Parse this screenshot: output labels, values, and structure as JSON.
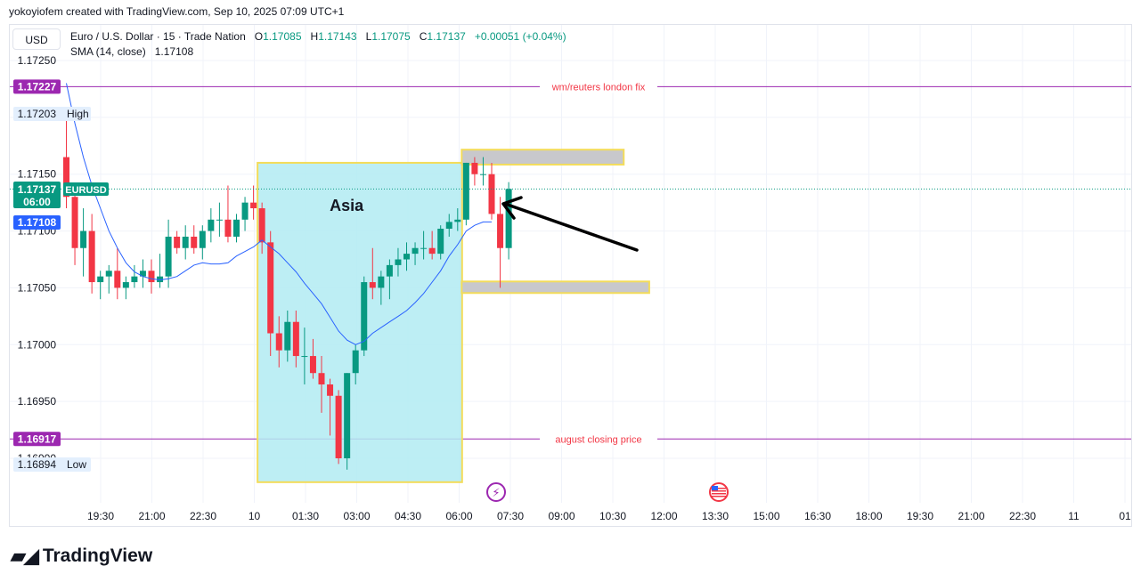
{
  "caption": "yokoyiofem created with TradingView.com, Sep 10, 2025 07:09 UTC+1",
  "currency_button": "USD",
  "legend": {
    "symbol": "Euro / U.S. Dollar · 15 · Trade Nation",
    "o_label": "O",
    "o_value": "1.17085",
    "h_label": "H",
    "h_value": "1.17143",
    "l_label": "L",
    "l_value": "1.17075",
    "c_label": "C",
    "c_value": "1.17137",
    "change": "+0.00051 (+0.04%)",
    "sma_label": "SMA (14, close)",
    "sma_value": "1.17108"
  },
  "colors": {
    "up": "#089981",
    "down": "#f23645",
    "sma": "#2962ff",
    "hline": "#9c27b0",
    "hline_text": "#f23645",
    "asia_fill": "#b2ebf2",
    "asia_border": "#f3dc5a",
    "zone_fill": "#c8c8cc",
    "arrow": "#000000"
  },
  "chart_data": {
    "type": "candlestick",
    "y_ticks": [
      "1.17250",
      "1.17150",
      "1.17100",
      "1.17050",
      "1.17000",
      "1.16950",
      "1.16900"
    ],
    "x_ticks": [
      "19:30",
      "21:00",
      "22:30",
      "10",
      "01:30",
      "03:00",
      "04:30",
      "06:00",
      "07:30",
      "09:00",
      "10:30",
      "12:00",
      "13:30",
      "15:00",
      "16:30",
      "18:00",
      "19:30",
      "21:00",
      "22:30",
      "11",
      "01"
    ],
    "ylim": [
      1.16875,
      1.17265
    ],
    "price_labels": {
      "fix_value": "1.17227",
      "high_value": "1.17203",
      "high_label": "High",
      "current_value": "1.17137",
      "current_symbol": "EURUSD",
      "countdown": "06:00",
      "sma_value": "1.17108",
      "close_value": "1.16917",
      "low_value": "1.16894",
      "low_label": "Low"
    },
    "horizontal_lines": [
      {
        "label": "wm/reuters london fix",
        "value": 1.17227
      },
      {
        "label": "august closing price",
        "value": 1.16917
      }
    ],
    "annotations": {
      "asia_label": "Asia"
    },
    "candles": [
      [
        1.17165,
        1.172,
        1.1712,
        1.1713
      ],
      [
        1.1713,
        1.1714,
        1.1707,
        1.17085
      ],
      [
        1.17085,
        1.1712,
        1.1706,
        1.171
      ],
      [
        1.171,
        1.17115,
        1.17045,
        1.17055
      ],
      [
        1.17055,
        1.17065,
        1.1704,
        1.1706
      ],
      [
        1.1706,
        1.1707,
        1.17045,
        1.17065
      ],
      [
        1.17065,
        1.17085,
        1.1704,
        1.1705
      ],
      [
        1.1705,
        1.1706,
        1.1704,
        1.17055
      ],
      [
        1.17055,
        1.1707,
        1.1705,
        1.1706
      ],
      [
        1.1706,
        1.17075,
        1.1705,
        1.17065
      ],
      [
        1.17065,
        1.17075,
        1.17045,
        1.17055
      ],
      [
        1.17055,
        1.1708,
        1.1705,
        1.1706
      ],
      [
        1.1706,
        1.1711,
        1.1705,
        1.17095
      ],
      [
        1.17095,
        1.171,
        1.1708,
        1.17085
      ],
      [
        1.17085,
        1.17105,
        1.17075,
        1.17095
      ],
      [
        1.17095,
        1.17105,
        1.1708,
        1.17085
      ],
      [
        1.17085,
        1.17105,
        1.17075,
        1.171
      ],
      [
        1.171,
        1.1712,
        1.1709,
        1.1711
      ],
      [
        1.1711,
        1.17125,
        1.17095,
        1.1711
      ],
      [
        1.1711,
        1.1714,
        1.1709,
        1.17095
      ],
      [
        1.17095,
        1.17115,
        1.1709,
        1.1711
      ],
      [
        1.1711,
        1.1713,
        1.171,
        1.17125
      ],
      [
        1.17125,
        1.1714,
        1.1711,
        1.1712
      ],
      [
        1.1712,
        1.17125,
        1.1708,
        1.1709
      ],
      [
        1.1709,
        1.171,
        1.1699,
        1.1701
      ],
      [
        1.1701,
        1.17025,
        1.1698,
        1.16995
      ],
      [
        1.16995,
        1.1703,
        1.16985,
        1.1702
      ],
      [
        1.1702,
        1.1703,
        1.1698,
        1.1699
      ],
      [
        1.1699,
        1.17015,
        1.16965,
        1.1699
      ],
      [
        1.1699,
        1.17005,
        1.1697,
        1.16975
      ],
      [
        1.16975,
        1.1699,
        1.1694,
        1.16965
      ],
      [
        1.16965,
        1.1697,
        1.1692,
        1.16955
      ],
      [
        1.16955,
        1.1696,
        1.16895,
        1.169
      ],
      [
        1.169,
        1.16975,
        1.1689,
        1.16975
      ],
      [
        1.16975,
        1.17,
        1.16965,
        1.16995
      ],
      [
        1.16995,
        1.1706,
        1.1699,
        1.17055
      ],
      [
        1.17055,
        1.17085,
        1.1704,
        1.1705
      ],
      [
        1.1705,
        1.17065,
        1.17035,
        1.1706
      ],
      [
        1.1706,
        1.17075,
        1.1704,
        1.1707
      ],
      [
        1.1707,
        1.17085,
        1.1706,
        1.17075
      ],
      [
        1.17075,
        1.1709,
        1.17065,
        1.1708
      ],
      [
        1.1708,
        1.1709,
        1.1707,
        1.17085
      ],
      [
        1.17085,
        1.171,
        1.17075,
        1.17085
      ],
      [
        1.17085,
        1.171,
        1.17075,
        1.1708
      ],
      [
        1.1708,
        1.17105,
        1.17075,
        1.17102
      ],
      [
        1.17102,
        1.17115,
        1.17095,
        1.17108
      ],
      [
        1.17108,
        1.1712,
        1.171,
        1.1711
      ],
      [
        1.1711,
        1.1716,
        1.17105,
        1.1716
      ],
      [
        1.1716,
        1.17165,
        1.1714,
        1.1715
      ],
      [
        1.1715,
        1.17165,
        1.1714,
        1.1715
      ],
      [
        1.1715,
        1.1716,
        1.1711,
        1.17115
      ],
      [
        1.17115,
        1.1713,
        1.1705,
        1.17085
      ],
      [
        1.17085,
        1.17143,
        1.17075,
        1.17137
      ]
    ],
    "sma": [
      1.1723,
      1.17195,
      1.17165,
      1.1714,
      1.1712,
      1.171,
      1.17085,
      1.17072,
      1.17064,
      1.1706,
      1.17058,
      1.17057,
      1.17058,
      1.1706,
      1.17065,
      1.1707,
      1.17072,
      1.17071,
      1.17071,
      1.17072,
      1.17078,
      1.17082,
      1.17086,
      1.17092,
      1.17086,
      1.1708,
      1.17072,
      1.17064,
      1.17054,
      1.17045,
      1.17036,
      1.17024,
      1.17012,
      1.17004,
      1.17,
      1.17003,
      1.1701,
      1.17015,
      1.1702,
      1.17025,
      1.1703,
      1.17037,
      1.17045,
      1.17055,
      1.17065,
      1.17078,
      1.17088,
      1.171,
      1.17105,
      1.17108,
      1.17108
    ],
    "asia_session": {
      "start_index": 23,
      "end_index": 46,
      "low": 1.16879,
      "high": 1.1716
    },
    "zones": [
      {
        "name": "upper-zone",
        "start_index": 47,
        "end_index": 65,
        "low": 1.1716,
        "high": 1.1717
      },
      {
        "name": "lower-zone",
        "start_index": 47,
        "end_index": 68,
        "low": 1.17047,
        "high": 1.17054
      }
    ]
  },
  "brand": "TradingView"
}
